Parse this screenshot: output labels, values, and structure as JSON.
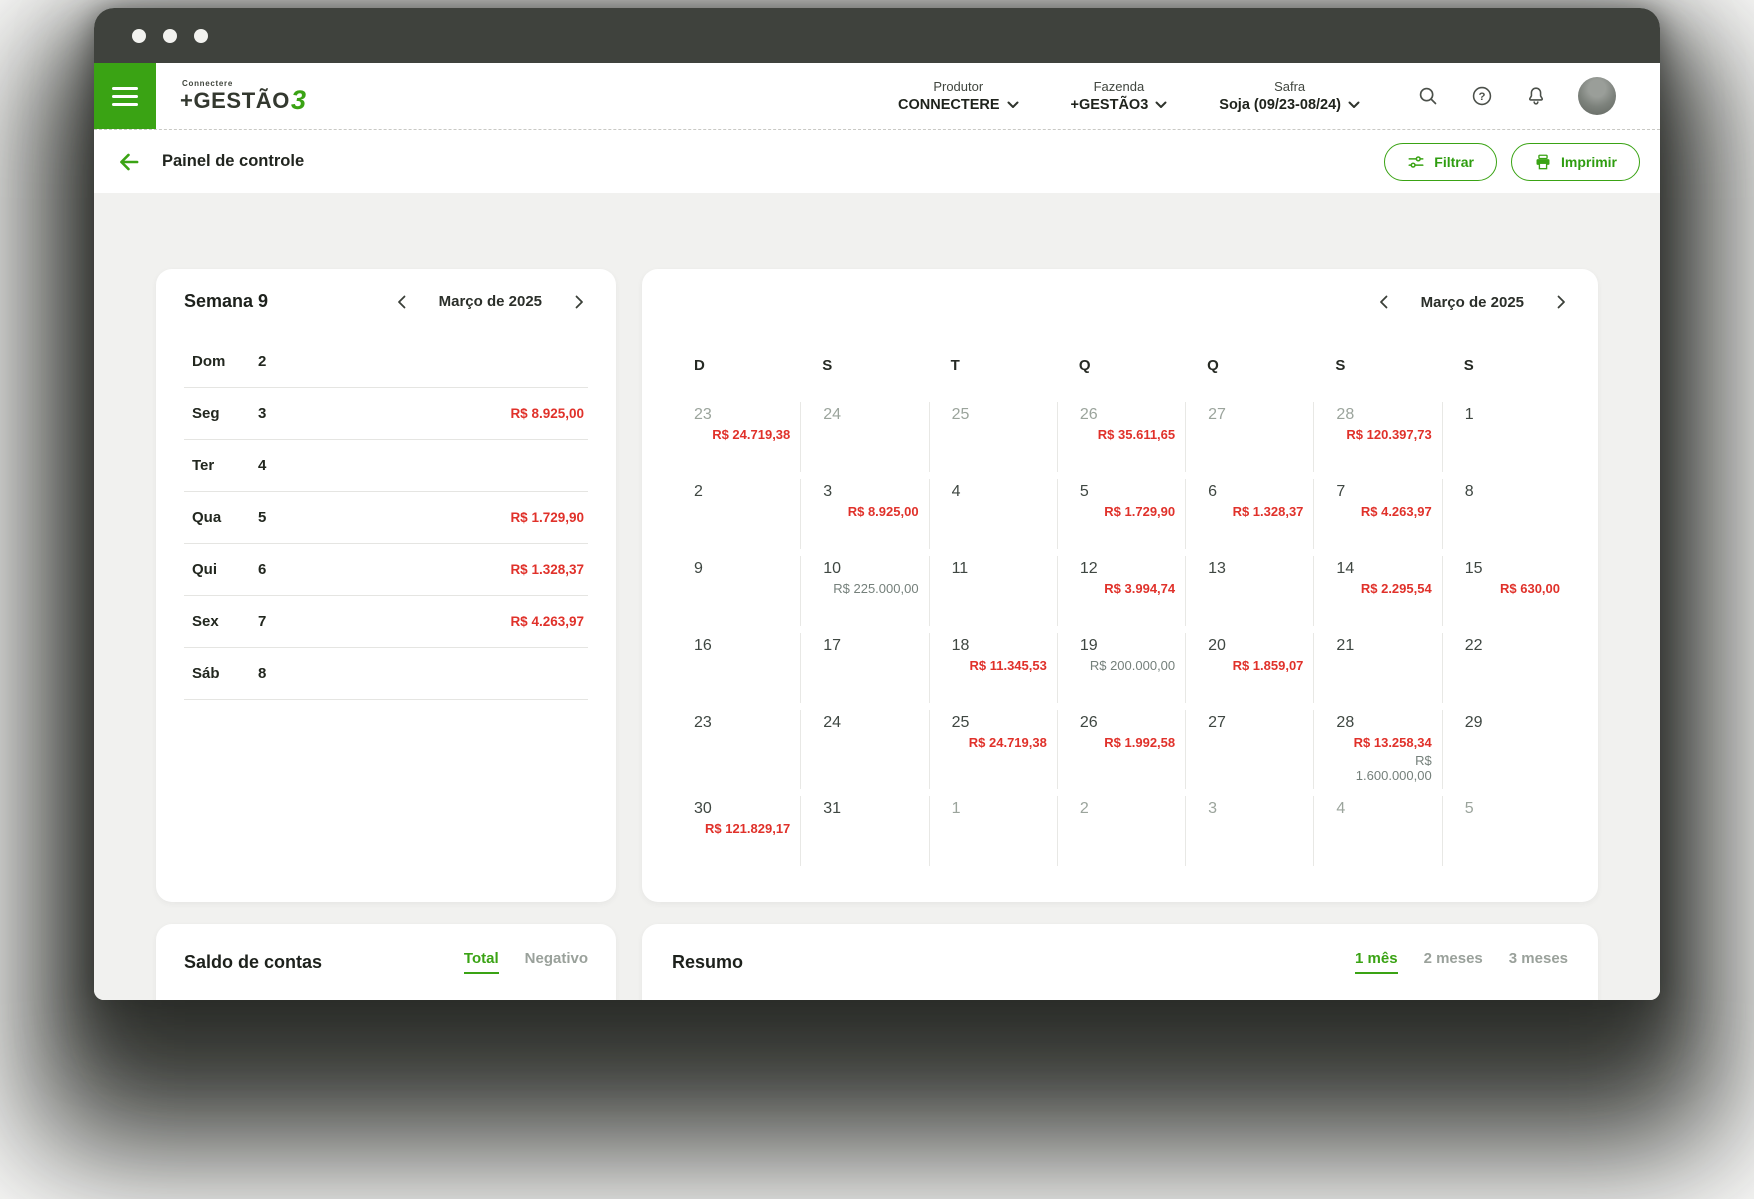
{
  "header": {
    "logo_top": "Connectere",
    "logo_main": "+GESTÃO",
    "logo_accent": "3",
    "selectors": [
      {
        "label": "Produtor",
        "value": "CONNECTERE"
      },
      {
        "label": "Fazenda",
        "value": "+GESTÃO3"
      },
      {
        "label": "Safra",
        "value": "Soja (09/23-08/24)"
      }
    ],
    "icons": [
      "search-icon",
      "help-icon",
      "notifications-icon",
      "avatar"
    ]
  },
  "toolbar": {
    "title": "Painel de controle",
    "filter_label": "Filtrar",
    "print_label": "Imprimir"
  },
  "week_card": {
    "title": "Semana 9",
    "month_label": "Março de 2025",
    "rows": [
      {
        "day": "Dom",
        "date": "2",
        "value": ""
      },
      {
        "day": "Seg",
        "date": "3",
        "value": "R$ 8.925,00"
      },
      {
        "day": "Ter",
        "date": "4",
        "value": ""
      },
      {
        "day": "Qua",
        "date": "5",
        "value": "R$ 1.729,90"
      },
      {
        "day": "Qui",
        "date": "6",
        "value": "R$ 1.328,37"
      },
      {
        "day": "Sex",
        "date": "7",
        "value": "R$ 4.263,97"
      },
      {
        "day": "Sáb",
        "date": "8",
        "value": ""
      }
    ]
  },
  "calendar_card": {
    "month_label": "Março de 2025",
    "weekday_headers": [
      "D",
      "S",
      "T",
      "Q",
      "Q",
      "S",
      "S"
    ],
    "weeks": [
      [
        {
          "day": "23",
          "muted": true,
          "values": [
            {
              "text": "R$ 24.719,38",
              "tone": "negative"
            }
          ]
        },
        {
          "day": "24",
          "muted": true,
          "values": []
        },
        {
          "day": "25",
          "muted": true,
          "values": []
        },
        {
          "day": "26",
          "muted": true,
          "values": [
            {
              "text": "R$ 35.611,65",
              "tone": "negative"
            }
          ]
        },
        {
          "day": "27",
          "muted": true,
          "values": []
        },
        {
          "day": "28",
          "muted": true,
          "values": [
            {
              "text": "R$ 120.397,73",
              "tone": "negative"
            }
          ]
        },
        {
          "day": "1",
          "muted": false,
          "values": []
        }
      ],
      [
        {
          "day": "2",
          "muted": false,
          "values": []
        },
        {
          "day": "3",
          "muted": false,
          "values": [
            {
              "text": "R$ 8.925,00",
              "tone": "negative"
            }
          ]
        },
        {
          "day": "4",
          "muted": false,
          "values": []
        },
        {
          "day": "5",
          "muted": false,
          "values": [
            {
              "text": "R$ 1.729,90",
              "tone": "negative"
            }
          ]
        },
        {
          "day": "6",
          "muted": false,
          "values": [
            {
              "text": "R$ 1.328,37",
              "tone": "negative"
            }
          ]
        },
        {
          "day": "7",
          "muted": false,
          "values": [
            {
              "text": "R$ 4.263,97",
              "tone": "negative"
            }
          ]
        },
        {
          "day": "8",
          "muted": false,
          "values": []
        }
      ],
      [
        {
          "day": "9",
          "muted": false,
          "values": []
        },
        {
          "day": "10",
          "muted": false,
          "values": [
            {
              "text": "R$ 225.000,00",
              "tone": "neutral"
            }
          ]
        },
        {
          "day": "11",
          "muted": false,
          "values": []
        },
        {
          "day": "12",
          "muted": false,
          "values": [
            {
              "text": "R$ 3.994,74",
              "tone": "negative"
            }
          ]
        },
        {
          "day": "13",
          "muted": false,
          "values": []
        },
        {
          "day": "14",
          "muted": false,
          "values": [
            {
              "text": "R$ 2.295,54",
              "tone": "negative"
            }
          ]
        },
        {
          "day": "15",
          "muted": false,
          "values": [
            {
              "text": "R$ 630,00",
              "tone": "negative"
            }
          ]
        }
      ],
      [
        {
          "day": "16",
          "muted": false,
          "values": []
        },
        {
          "day": "17",
          "muted": false,
          "values": []
        },
        {
          "day": "18",
          "muted": false,
          "values": [
            {
              "text": "R$ 11.345,53",
              "tone": "negative"
            }
          ]
        },
        {
          "day": "19",
          "muted": false,
          "values": [
            {
              "text": "R$ 200.000,00",
              "tone": "neutral"
            }
          ]
        },
        {
          "day": "20",
          "muted": false,
          "values": [
            {
              "text": "R$ 1.859,07",
              "tone": "negative"
            }
          ]
        },
        {
          "day": "21",
          "muted": false,
          "values": []
        },
        {
          "day": "22",
          "muted": false,
          "values": []
        }
      ],
      [
        {
          "day": "23",
          "muted": false,
          "values": []
        },
        {
          "day": "24",
          "muted": false,
          "values": []
        },
        {
          "day": "25",
          "muted": false,
          "values": [
            {
              "text": "R$ 24.719,38",
              "tone": "negative"
            }
          ]
        },
        {
          "day": "26",
          "muted": false,
          "values": [
            {
              "text": "R$ 1.992,58",
              "tone": "negative"
            }
          ]
        },
        {
          "day": "27",
          "muted": false,
          "values": []
        },
        {
          "day": "28",
          "muted": false,
          "values": [
            {
              "text": "R$ 13.258,34",
              "tone": "negative"
            },
            {
              "text": "R$ 1.600.000,00",
              "tone": "neutral"
            }
          ]
        },
        {
          "day": "29",
          "muted": false,
          "values": []
        }
      ],
      [
        {
          "day": "30",
          "muted": false,
          "values": [
            {
              "text": "R$ 121.829,17",
              "tone": "negative"
            }
          ]
        },
        {
          "day": "31",
          "muted": false,
          "values": []
        },
        {
          "day": "1",
          "muted": true,
          "values": []
        },
        {
          "day": "2",
          "muted": true,
          "values": []
        },
        {
          "day": "3",
          "muted": true,
          "values": []
        },
        {
          "day": "4",
          "muted": true,
          "values": []
        },
        {
          "day": "5",
          "muted": true,
          "values": []
        }
      ]
    ]
  },
  "saldo_card": {
    "title": "Saldo de contas",
    "tabs": [
      {
        "label": "Total",
        "active": true
      },
      {
        "label": "Negativo",
        "active": false
      }
    ]
  },
  "resumo_card": {
    "title": "Resumo",
    "tabs": [
      {
        "label": "1 mês",
        "active": true
      },
      {
        "label": "2 meses",
        "active": false
      },
      {
        "label": "3 meses",
        "active": false
      }
    ]
  },
  "colors": {
    "accent_green": "#3aa314",
    "negative_red": "#e0312a",
    "neutral_value": "#75807b",
    "titlebar": "#3f423d"
  }
}
